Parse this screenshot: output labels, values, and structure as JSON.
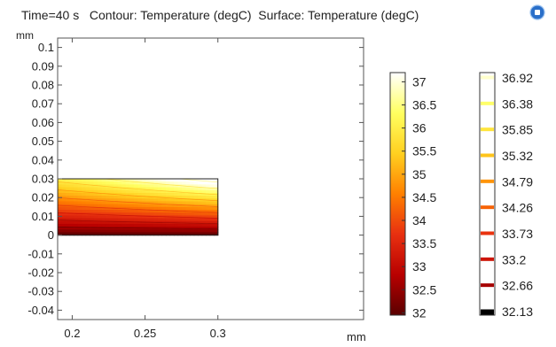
{
  "header": {
    "title": "Time=40 s   Contour: Temperature (degC)  Surface: Temperature (degC)"
  },
  "icons": {
    "logo": "comsol-logo-icon"
  },
  "chart_data": {
    "type": "heatmap",
    "title": "Time=40 s   Contour: Temperature (degC)  Surface: Temperature (degC)",
    "xlabel": "mm",
    "ylabel": "mm",
    "xlim": [
      0.19,
      0.4
    ],
    "ylim": [
      -0.045,
      0.105
    ],
    "x_ticks": [
      "0.2",
      "0.25",
      "0.3"
    ],
    "y_ticks": [
      "0.1",
      "0.09",
      "0.08",
      "0.07",
      "0.06",
      "0.05",
      "0.04",
      "0.03",
      "0.02",
      "0.01",
      "0",
      "-0.01",
      "-0.02",
      "-0.03",
      "-0.04"
    ],
    "domain": {
      "x": [
        0.19,
        0.3
      ],
      "y": [
        0,
        0.03
      ]
    },
    "surface_colorbar": {
      "name": "Surface: Temperature (degC)",
      "min": 31.95,
      "max": 37.2,
      "ticks": [
        "37",
        "36.5",
        "36",
        "35.5",
        "35",
        "34.5",
        "34",
        "33.5",
        "33",
        "32.5",
        "32"
      ],
      "colormap": [
        "#ffffff",
        "#ffff60",
        "#ffd020",
        "#ff8000",
        "#e83010",
        "#b80000",
        "#5a0000"
      ]
    },
    "contour_legend": {
      "name": "Contour: Temperature (degC)",
      "levels": [
        "36.92",
        "36.38",
        "35.85",
        "35.32",
        "34.79",
        "34.26",
        "33.73",
        "33.2",
        "32.66",
        "32.13"
      ]
    },
    "grid": false
  }
}
